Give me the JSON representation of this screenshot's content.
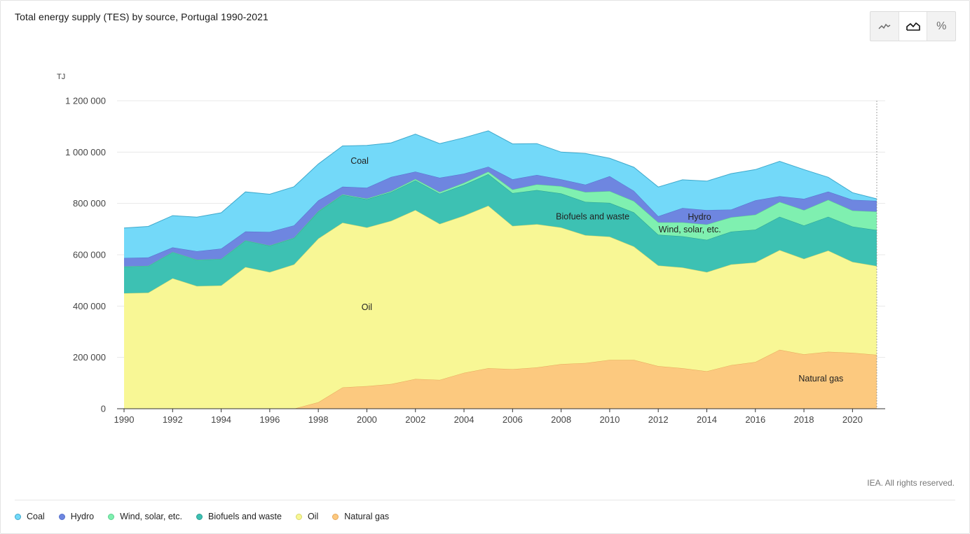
{
  "title": "Total energy supply (TES) by source, Portugal 1990-2021",
  "toggle": [
    {
      "name": "line-chart-icon",
      "symbol": "line"
    },
    {
      "name": "area-chart-icon",
      "symbol": "area"
    },
    {
      "name": "percent-icon",
      "symbol": "%"
    }
  ],
  "credit": "IEA. All rights reserved.",
  "chart_data": {
    "type": "area",
    "stacked": true,
    "title": "Total energy supply (TES) by source, Portugal 1990-2021",
    "unit": "TJ",
    "ylim": [
      0,
      1200000
    ],
    "yticks": [
      0,
      200000,
      400000,
      600000,
      800000,
      1000000,
      1200000
    ],
    "ytick_labels": [
      "0",
      "200 000",
      "400 000",
      "600 000",
      "800 000",
      "1 000 000",
      "1 200 000"
    ],
    "xticks": [
      1990,
      1992,
      1994,
      1996,
      1998,
      2000,
      2002,
      2004,
      2006,
      2008,
      2010,
      2012,
      2014,
      2016,
      2018,
      2020
    ],
    "x": [
      1990,
      1991,
      1992,
      1993,
      1994,
      1995,
      1996,
      1997,
      1998,
      1999,
      2000,
      2001,
      2002,
      2003,
      2004,
      2005,
      2006,
      2007,
      2008,
      2009,
      2010,
      2011,
      2012,
      2013,
      2014,
      2015,
      2016,
      2017,
      2018,
      2019,
      2020,
      2021
    ],
    "series": [
      {
        "name": "Natural gas",
        "color": "#fcc97f",
        "stroke": "#e6a75a",
        "label": "Natural gas",
        "values": [
          0,
          0,
          0,
          0,
          0,
          0,
          0,
          0,
          25000,
          83000,
          88000,
          96000,
          116000,
          112000,
          140000,
          158000,
          154000,
          161000,
          174000,
          178000,
          190000,
          190000,
          166000,
          158000,
          146000,
          170000,
          182000,
          230000,
          212000,
          222000,
          218000,
          210000
        ]
      },
      {
        "name": "Oil",
        "color": "#f8f795",
        "stroke": "#d9d86a",
        "label": "Oil",
        "values": [
          450000,
          452000,
          508000,
          478000,
          480000,
          552000,
          532000,
          562000,
          638000,
          642000,
          618000,
          636000,
          658000,
          608000,
          612000,
          633000,
          558000,
          558000,
          532000,
          498000,
          480000,
          442000,
          392000,
          392000,
          386000,
          392000,
          388000,
          388000,
          372000,
          394000,
          354000,
          346000
        ]
      },
      {
        "name": "Biofuels and waste",
        "color": "#3dc1b3",
        "stroke": "#2a9e92",
        "label": "Biofuels and waste",
        "values": [
          104000,
          104000,
          102000,
          102000,
          103000,
          103000,
          103000,
          103000,
          105000,
          108000,
          110000,
          112000,
          116000,
          118000,
          120000,
          123000,
          128000,
          133000,
          133000,
          130000,
          132000,
          133000,
          120000,
          122000,
          126000,
          128000,
          128000,
          130000,
          130000,
          132000,
          138000,
          140000
        ]
      },
      {
        "name": "Wind, solar, etc.",
        "color": "#7ff0b0",
        "stroke": "#5ccf8e",
        "label": "Wind, solar, etc.",
        "values": [
          500,
          500,
          500,
          600,
          700,
          800,
          900,
          1200,
          1600,
          2200,
          3000,
          4000,
          5000,
          6000,
          8000,
          10000,
          14000,
          22000,
          28000,
          38000,
          46000,
          44000,
          48000,
          54000,
          60000,
          56000,
          58000,
          58000,
          60000,
          66000,
          62000,
          72000
        ]
      },
      {
        "name": "Hydro",
        "color": "#6e86e0",
        "stroke": "#5570cc",
        "label": "Hydro",
        "values": [
          33000,
          33000,
          18000,
          33000,
          40000,
          35000,
          53000,
          48000,
          42000,
          30000,
          42000,
          55000,
          29000,
          56000,
          36000,
          19000,
          40000,
          37000,
          27000,
          29000,
          58000,
          40000,
          24000,
          56000,
          56000,
          30000,
          56000,
          22000,
          44000,
          32000,
          42000,
          42000
        ]
      },
      {
        "name": "Coal",
        "color": "#73d9f9",
        "stroke": "#3ea9cc",
        "label": "Coal",
        "values": [
          117000,
          121000,
          124000,
          133000,
          140000,
          154000,
          147000,
          151000,
          142000,
          159000,
          165000,
          133000,
          146000,
          133000,
          140000,
          140000,
          138000,
          122000,
          106000,
          122000,
          70000,
          92000,
          114000,
          110000,
          113000,
          140000,
          120000,
          136000,
          114000,
          56000,
          28000,
          8000
        ]
      }
    ],
    "legend": [
      "Coal",
      "Hydro",
      "Wind, solar, etc.",
      "Biofuels and waste",
      "Oil",
      "Natural gas"
    ]
  }
}
